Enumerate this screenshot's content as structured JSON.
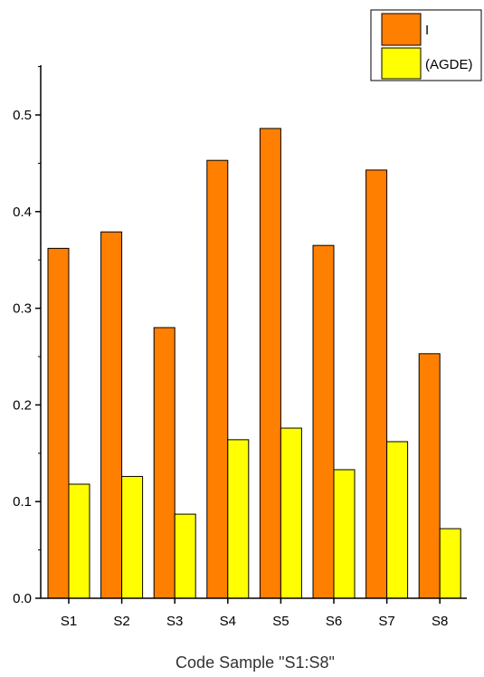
{
  "chart_data": {
    "type": "bar",
    "title": "",
    "xlabel": "Code Sample \"S1:S8\"",
    "ylabel": "",
    "categories": [
      "S1",
      "S2",
      "S3",
      "S4",
      "S5",
      "S6",
      "S7",
      "S8"
    ],
    "ylim": [
      0,
      0.55
    ],
    "yticks": [
      "0.0",
      "0.1",
      "0.2",
      "0.3",
      "0.4",
      "0.5"
    ],
    "grid": false,
    "legend_position": "top-right",
    "series": [
      {
        "name": "I",
        "color": "#ff7f00",
        "values": [
          0.362,
          0.379,
          0.28,
          0.453,
          0.486,
          0.365,
          0.443,
          0.253
        ]
      },
      {
        "name": "(AGDE)",
        "color": "#ffff00",
        "values": [
          0.118,
          0.126,
          0.087,
          0.164,
          0.176,
          0.133,
          0.162,
          0.072
        ]
      }
    ]
  }
}
